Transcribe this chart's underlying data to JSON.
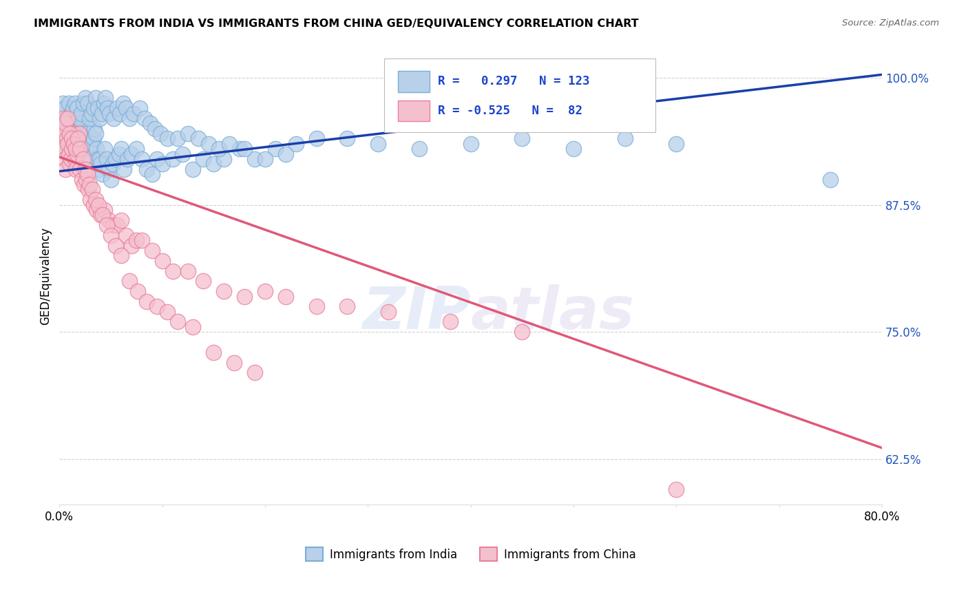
{
  "title": "IMMIGRANTS FROM INDIA VS IMMIGRANTS FROM CHINA GED/EQUIVALENCY CORRELATION CHART",
  "source": "Source: ZipAtlas.com",
  "ylabel": "GED/Equivalency",
  "xlim": [
    0.0,
    0.8
  ],
  "ylim": [
    0.58,
    1.03
  ],
  "xticks": [
    0.0,
    0.1,
    0.2,
    0.3,
    0.4,
    0.5,
    0.6,
    0.7,
    0.8
  ],
  "ytick_positions": [
    0.625,
    0.75,
    0.875,
    1.0
  ],
  "ytick_labels": [
    "62.5%",
    "75.0%",
    "87.5%",
    "100.0%"
  ],
  "india_color": "#b8d0ea",
  "india_edge_color": "#7aaed6",
  "china_color": "#f5c0ce",
  "china_edge_color": "#e8809a",
  "india_line_color": "#1a3faa",
  "china_line_color": "#e05878",
  "india_R": 0.297,
  "india_N": 123,
  "china_R": -0.525,
  "china_N": 82,
  "legend_label_india": "Immigrants from India",
  "legend_label_china": "Immigrants from China",
  "watermark": "ZIPatlas",
  "india_line_x0": 0.0,
  "india_line_y0": 0.908,
  "india_line_x1": 0.8,
  "india_line_y1": 1.003,
  "china_line_x0": 0.0,
  "china_line_y0": 0.922,
  "china_line_x1": 0.8,
  "china_line_y1": 0.636,
  "india_x": [
    0.002,
    0.003,
    0.004,
    0.005,
    0.006,
    0.007,
    0.008,
    0.009,
    0.01,
    0.011,
    0.012,
    0.013,
    0.014,
    0.015,
    0.016,
    0.017,
    0.018,
    0.019,
    0.02,
    0.021,
    0.022,
    0.023,
    0.024,
    0.025,
    0.026,
    0.027,
    0.028,
    0.029,
    0.03,
    0.031,
    0.032,
    0.033,
    0.034,
    0.035,
    0.036,
    0.037,
    0.038,
    0.039,
    0.04,
    0.042,
    0.044,
    0.046,
    0.048,
    0.05,
    0.052,
    0.055,
    0.058,
    0.06,
    0.063,
    0.066,
    0.07,
    0.075,
    0.08,
    0.085,
    0.09,
    0.095,
    0.1,
    0.11,
    0.12,
    0.13,
    0.14,
    0.15,
    0.16,
    0.175,
    0.19,
    0.21,
    0.23,
    0.25,
    0.28,
    0.31,
    0.35,
    0.4,
    0.45,
    0.5,
    0.55,
    0.6,
    0.75,
    0.003,
    0.005,
    0.007,
    0.009,
    0.011,
    0.013,
    0.015,
    0.017,
    0.019,
    0.021,
    0.023,
    0.025,
    0.027,
    0.029,
    0.031,
    0.033,
    0.035,
    0.037,
    0.039,
    0.041,
    0.043,
    0.045,
    0.047,
    0.049,
    0.053,
    0.056,
    0.059,
    0.062,
    0.065,
    0.068,
    0.072,
    0.078,
    0.083,
    0.088,
    0.093,
    0.098,
    0.105,
    0.115,
    0.125,
    0.135,
    0.145,
    0.155,
    0.165,
    0.18,
    0.2,
    0.22
  ],
  "india_y": [
    0.94,
    0.955,
    0.96,
    0.93,
    0.945,
    0.95,
    0.96,
    0.935,
    0.92,
    0.945,
    0.955,
    0.94,
    0.96,
    0.965,
    0.955,
    0.96,
    0.945,
    0.94,
    0.93,
    0.95,
    0.955,
    0.96,
    0.94,
    0.965,
    0.95,
    0.945,
    0.93,
    0.935,
    0.92,
    0.93,
    0.935,
    0.94,
    0.95,
    0.945,
    0.93,
    0.92,
    0.91,
    0.92,
    0.915,
    0.905,
    0.93,
    0.92,
    0.91,
    0.9,
    0.915,
    0.92,
    0.925,
    0.93,
    0.91,
    0.92,
    0.925,
    0.93,
    0.92,
    0.91,
    0.905,
    0.92,
    0.915,
    0.92,
    0.925,
    0.91,
    0.92,
    0.915,
    0.92,
    0.93,
    0.92,
    0.93,
    0.935,
    0.94,
    0.94,
    0.935,
    0.93,
    0.935,
    0.94,
    0.93,
    0.94,
    0.935,
    0.9,
    0.975,
    0.97,
    0.96,
    0.975,
    0.965,
    0.97,
    0.975,
    0.97,
    0.96,
    0.965,
    0.975,
    0.98,
    0.975,
    0.96,
    0.965,
    0.97,
    0.98,
    0.97,
    0.96,
    0.965,
    0.975,
    0.98,
    0.97,
    0.965,
    0.96,
    0.97,
    0.965,
    0.975,
    0.97,
    0.96,
    0.965,
    0.97,
    0.96,
    0.955,
    0.95,
    0.945,
    0.94,
    0.94,
    0.945,
    0.94,
    0.935,
    0.93,
    0.935,
    0.93,
    0.92,
    0.925
  ],
  "china_x": [
    0.002,
    0.003,
    0.004,
    0.005,
    0.006,
    0.007,
    0.008,
    0.009,
    0.01,
    0.011,
    0.012,
    0.013,
    0.014,
    0.015,
    0.016,
    0.017,
    0.018,
    0.019,
    0.02,
    0.022,
    0.024,
    0.026,
    0.028,
    0.03,
    0.033,
    0.036,
    0.04,
    0.044,
    0.048,
    0.052,
    0.056,
    0.06,
    0.065,
    0.07,
    0.075,
    0.08,
    0.09,
    0.1,
    0.11,
    0.125,
    0.14,
    0.16,
    0.18,
    0.2,
    0.22,
    0.25,
    0.28,
    0.32,
    0.38,
    0.45,
    0.004,
    0.006,
    0.008,
    0.01,
    0.012,
    0.014,
    0.016,
    0.018,
    0.02,
    0.023,
    0.025,
    0.027,
    0.029,
    0.032,
    0.035,
    0.038,
    0.042,
    0.046,
    0.05,
    0.055,
    0.06,
    0.068,
    0.076,
    0.085,
    0.095,
    0.105,
    0.115,
    0.13,
    0.15,
    0.17,
    0.19,
    0.6
  ],
  "china_y": [
    0.94,
    0.95,
    0.93,
    0.92,
    0.91,
    0.94,
    0.935,
    0.925,
    0.915,
    0.92,
    0.93,
    0.945,
    0.935,
    0.92,
    0.91,
    0.925,
    0.93,
    0.945,
    0.91,
    0.9,
    0.895,
    0.9,
    0.89,
    0.88,
    0.875,
    0.87,
    0.865,
    0.87,
    0.86,
    0.855,
    0.855,
    0.86,
    0.845,
    0.835,
    0.84,
    0.84,
    0.83,
    0.82,
    0.81,
    0.81,
    0.8,
    0.79,
    0.785,
    0.79,
    0.785,
    0.775,
    0.775,
    0.77,
    0.76,
    0.75,
    0.96,
    0.955,
    0.96,
    0.945,
    0.94,
    0.935,
    0.93,
    0.94,
    0.93,
    0.92,
    0.91,
    0.905,
    0.895,
    0.89,
    0.88,
    0.875,
    0.865,
    0.855,
    0.845,
    0.835,
    0.825,
    0.8,
    0.79,
    0.78,
    0.775,
    0.77,
    0.76,
    0.755,
    0.73,
    0.72,
    0.71,
    0.595
  ]
}
